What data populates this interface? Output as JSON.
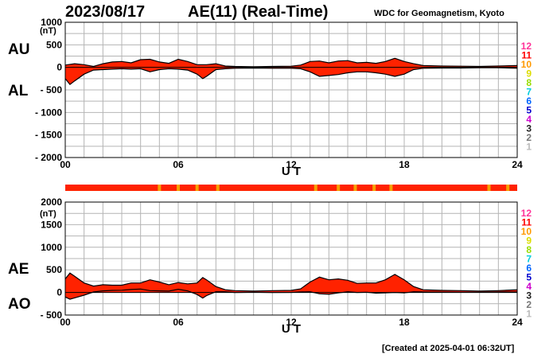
{
  "header": {
    "date": "2023/08/17",
    "title": "AE(11) (Real-Time)",
    "credit": "WDC for Geomagnetism, Kyoto"
  },
  "footer": {
    "created": "[Created at 2025-04-01 06:32UT]"
  },
  "colors": {
    "fill": "#ff2200",
    "line": "#000000",
    "grid": "#b4b4b4",
    "strip_base": "#ff2200",
    "strip_marker": "#f5a100"
  },
  "legend_scale": {
    "labels": [
      "12",
      "11",
      "10",
      "9",
      "8",
      "7",
      "6",
      "5",
      "4",
      "3",
      "2",
      "1"
    ],
    "colors": [
      "#ff3399",
      "#ff0000",
      "#ff9900",
      "#dddd00",
      "#99dd00",
      "#00ccdd",
      "#0066ff",
      "#0000cc",
      "#cc00cc",
      "#222222",
      "#777777",
      "#bbbbbb"
    ]
  },
  "strip_markers_hours": [
    5.0,
    6.0,
    7.0,
    8.1,
    13.3,
    14.5,
    15.4,
    16.4,
    17.3,
    22.5,
    23.5
  ],
  "chart_data": [
    {
      "type": "area",
      "labels": {
        "upper": "AU",
        "lower": "AL",
        "unit": "(nT)",
        "xlabel": "U T"
      },
      "ylim": [
        -2000,
        1000
      ],
      "yticks": [
        1000,
        500,
        0,
        -500,
        -1000,
        -1500,
        -2000
      ],
      "ytick_labels": [
        "1000",
        "500",
        "0",
        "- 500",
        "- 1000",
        "- 1500",
        "- 2000"
      ],
      "xlim": [
        0,
        24
      ],
      "xticks": [
        "00",
        "06",
        "12",
        "18",
        "24"
      ],
      "grid": true,
      "series": [
        {
          "name": "AU",
          "x": [
            0,
            0.5,
            1,
            1.5,
            2,
            2.5,
            3,
            3.5,
            4,
            4.5,
            5,
            5.5,
            6,
            6.5,
            7,
            7.5,
            8,
            8.5,
            9,
            10,
            11,
            12,
            12.5,
            13,
            13.5,
            14,
            14.5,
            15,
            15.5,
            16,
            16.5,
            17,
            17.5,
            18,
            18.5,
            19,
            20,
            21,
            22,
            23,
            24
          ],
          "y": [
            50,
            80,
            60,
            20,
            80,
            120,
            130,
            100,
            170,
            180,
            120,
            90,
            180,
            130,
            60,
            60,
            80,
            30,
            20,
            15,
            20,
            25,
            50,
            130,
            140,
            100,
            140,
            150,
            100,
            110,
            90,
            130,
            200,
            130,
            80,
            40,
            30,
            25,
            20,
            30,
            40
          ]
        },
        {
          "name": "AL",
          "x": [
            0,
            0.25,
            0.5,
            1,
            1.5,
            2,
            2.5,
            3,
            3.5,
            4,
            4.5,
            5,
            5.5,
            6,
            6.5,
            7,
            7.3,
            7.5,
            8,
            8.5,
            9,
            10,
            11,
            12,
            12.5,
            13,
            13.5,
            14,
            14.5,
            15,
            15.5,
            16,
            16.5,
            17,
            17.5,
            18,
            18.5,
            19,
            20,
            21,
            22,
            23,
            24
          ],
          "y": [
            -250,
            -380,
            -300,
            -150,
            -60,
            -50,
            -40,
            -30,
            -40,
            -30,
            -100,
            -50,
            -30,
            -40,
            -60,
            -150,
            -250,
            -200,
            -50,
            -30,
            -20,
            -15,
            -20,
            -20,
            -30,
            -100,
            -200,
            -180,
            -160,
            -120,
            -100,
            -100,
            -120,
            -150,
            -200,
            -150,
            -50,
            -20,
            -15,
            -15,
            -10,
            -10,
            -20
          ]
        }
      ]
    },
    {
      "type": "area",
      "labels": {
        "upper": "AE",
        "lower": "AO",
        "unit": "(nT)",
        "xlabel": "U T"
      },
      "ylim": [
        -500,
        2000
      ],
      "yticks": [
        2000,
        1500,
        1000,
        500,
        0,
        -500
      ],
      "ytick_labels": [
        "2000",
        "1500",
        "1000",
        "500",
        "0",
        "- 500"
      ],
      "xlim": [
        0,
        24
      ],
      "xticks": [
        "00",
        "06",
        "12",
        "18",
        "24"
      ],
      "grid": true,
      "series": [
        {
          "name": "AE",
          "x": [
            0,
            0.25,
            0.5,
            1,
            1.5,
            2,
            2.5,
            3,
            3.5,
            4,
            4.5,
            5,
            5.5,
            6,
            6.5,
            7,
            7.3,
            7.5,
            8,
            8.5,
            9,
            10,
            11,
            12,
            12.5,
            13,
            13.5,
            14,
            14.5,
            15,
            15.5,
            16,
            16.5,
            17,
            17.5,
            18,
            18.5,
            19,
            20,
            21,
            22,
            23,
            24
          ],
          "y": [
            300,
            430,
            360,
            210,
            140,
            170,
            160,
            160,
            210,
            210,
            280,
            230,
            170,
            220,
            190,
            210,
            330,
            280,
            130,
            60,
            40,
            30,
            40,
            45,
            80,
            230,
            340,
            280,
            300,
            270,
            200,
            210,
            210,
            280,
            400,
            280,
            130,
            60,
            45,
            40,
            30,
            40,
            60
          ]
        },
        {
          "name": "AO",
          "x": [
            0,
            0.25,
            0.5,
            1,
            1.5,
            2,
            2.5,
            3,
            3.5,
            4,
            4.5,
            5,
            5.5,
            6,
            6.5,
            7,
            7.3,
            7.5,
            8,
            8.5,
            9,
            10,
            11,
            12,
            12.5,
            13,
            13.5,
            14,
            14.5,
            15,
            15.5,
            16,
            16.5,
            17,
            17.5,
            18,
            18.5,
            19,
            20,
            21,
            22,
            23,
            24
          ],
          "y": [
            -100,
            -150,
            -120,
            -60,
            10,
            35,
            45,
            50,
            65,
            75,
            40,
            35,
            30,
            70,
            35,
            -45,
            -125,
            -70,
            15,
            15,
            0,
            5,
            0,
            2,
            10,
            15,
            -30,
            -40,
            -10,
            15,
            0,
            5,
            -15,
            -10,
            0,
            -10,
            15,
            10,
            7,
            5,
            5,
            10,
            10
          ]
        }
      ]
    }
  ]
}
